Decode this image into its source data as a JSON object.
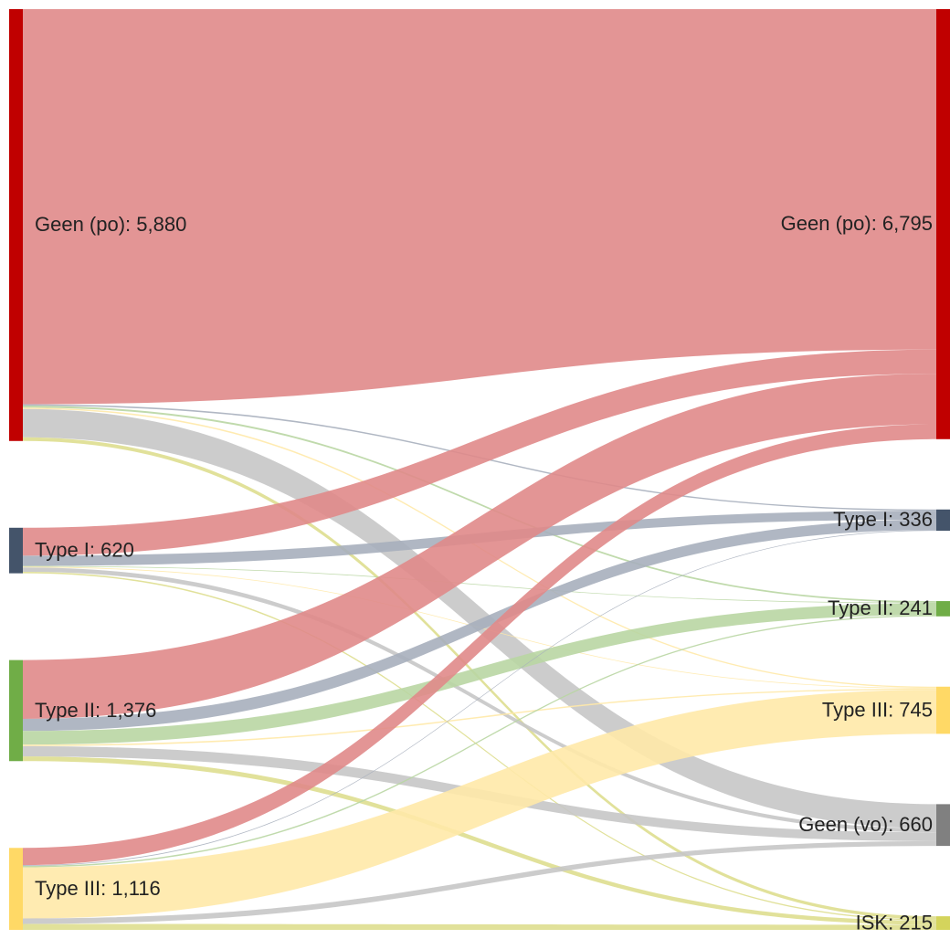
{
  "chart_data": {
    "type": "sankey",
    "sources": [
      {
        "id": "s_geen",
        "label": "Geen (po): 5,880",
        "value": 5880,
        "color": "#c00000"
      },
      {
        "id": "s_t1",
        "label": "Type I: 620",
        "value": 620,
        "color": "#44546a"
      },
      {
        "id": "s_t2",
        "label": "Type II: 1,376",
        "value": 1376,
        "color": "#70ad47"
      },
      {
        "id": "s_t3",
        "label": "Type III: 1,116",
        "value": 1116,
        "color": "#ffd966"
      }
    ],
    "targets": [
      {
        "id": "t_geen",
        "label": "Geen (po): 6,795",
        "value": 6795,
        "color": "#c00000"
      },
      {
        "id": "t_t1",
        "label": "Type I: 336",
        "value": 336,
        "color": "#44546a"
      },
      {
        "id": "t_t2",
        "label": "Type II: 241",
        "value": 241,
        "color": "#70ad47"
      },
      {
        "id": "t_t3",
        "label": "Type III: 745",
        "value": 745,
        "color": "#ffd966"
      },
      {
        "id": "t_vo",
        "label": "Geen (vo): 660",
        "value": 660,
        "color": "#808080"
      },
      {
        "id": "t_isk",
        "label": "ISK: 215",
        "value": 215,
        "color": "#d4d45c"
      }
    ],
    "links": [
      {
        "source": "s_geen",
        "target": "t_geen",
        "value": 5380,
        "color": "#e08a8a"
      },
      {
        "source": "s_geen",
        "target": "t_t1",
        "value": 20,
        "color": "#a7afbd"
      },
      {
        "source": "s_geen",
        "target": "t_t2",
        "value": 25,
        "color": "#b9d6a3"
      },
      {
        "source": "s_geen",
        "target": "t_t3",
        "value": 20,
        "color": "#ffe9a8"
      },
      {
        "source": "s_geen",
        "target": "t_vo",
        "value": 385,
        "color": "#c7c7c7"
      },
      {
        "source": "s_geen",
        "target": "t_isk",
        "value": 50,
        "color": "#dede8f"
      },
      {
        "source": "s_t1",
        "target": "t_geen",
        "value": 380,
        "color": "#e08a8a"
      },
      {
        "source": "s_t1",
        "target": "t_t1",
        "value": 140,
        "color": "#a7afbd"
      },
      {
        "source": "s_t1",
        "target": "t_t2",
        "value": 10,
        "color": "#b9d6a3"
      },
      {
        "source": "s_t1",
        "target": "t_t3",
        "value": 10,
        "color": "#ffe9a8"
      },
      {
        "source": "s_t1",
        "target": "t_vo",
        "value": 60,
        "color": "#c7c7c7"
      },
      {
        "source": "s_t1",
        "target": "t_isk",
        "value": 20,
        "color": "#dede8f"
      },
      {
        "source": "s_t2",
        "target": "t_geen",
        "value": 800,
        "color": "#e08a8a"
      },
      {
        "source": "s_t2",
        "target": "t_t1",
        "value": 166,
        "color": "#a7afbd"
      },
      {
        "source": "s_t2",
        "target": "t_t2",
        "value": 186,
        "color": "#b9d6a3"
      },
      {
        "source": "s_t2",
        "target": "t_t3",
        "value": 20,
        "color": "#ffe9a8"
      },
      {
        "source": "s_t2",
        "target": "t_vo",
        "value": 140,
        "color": "#c7c7c7"
      },
      {
        "source": "s_t2",
        "target": "t_isk",
        "value": 64,
        "color": "#dede8f"
      },
      {
        "source": "s_t3",
        "target": "t_geen",
        "value": 235,
        "color": "#e08a8a"
      },
      {
        "source": "s_t3",
        "target": "t_t1",
        "value": 10,
        "color": "#a7afbd"
      },
      {
        "source": "s_t3",
        "target": "t_t2",
        "value": 20,
        "color": "#b9d6a3"
      },
      {
        "source": "s_t3",
        "target": "t_t3",
        "value": 695,
        "color": "#ffe9a8"
      },
      {
        "source": "s_t3",
        "target": "t_vo",
        "value": 75,
        "color": "#c7c7c7"
      },
      {
        "source": "s_t3",
        "target": "t_isk",
        "value": 81,
        "color": "#dede8f"
      }
    ]
  }
}
